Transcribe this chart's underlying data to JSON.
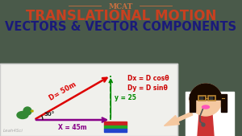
{
  "bg_dark": "#4a5a4a",
  "bg_whiteboard": "#f0f0ec",
  "title_top": "MCAT",
  "title_main": "TRANSLATIONAL MOTION",
  "title_sub": "VECTORS & VECTOR COMPONENTS",
  "title_top_color": "#c87040",
  "title_main_color": "#c84020",
  "title_sub_color": "#1a1a7a",
  "line_color_diagonal": "#dd0000",
  "line_color_horizontal": "#880088",
  "line_color_vertical": "#008800",
  "label_D": "D= 50m",
  "label_angle": "30°",
  "label_x": "X = 45m",
  "label_y": "y = 25",
  "eq1": "Dx = D cosθ",
  "eq2": "Dy = D sinθ",
  "eq_color": "#cc0000",
  "watermark": "Leah4Sci",
  "watermark_color": "#999999",
  "skin_color": "#f5c8a0",
  "hair_color": "#1a0a00",
  "lip_color": "#ff55bb",
  "coat_color": "#ffffff",
  "shirt_color": "#cc2222"
}
